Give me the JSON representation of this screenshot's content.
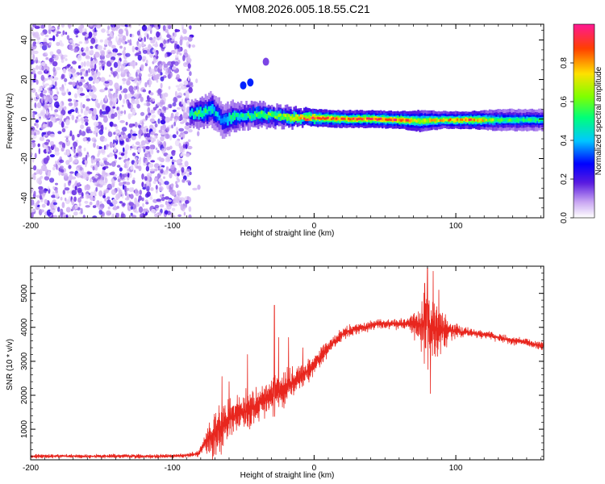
{
  "title": "YM08.2026.005.18.55.C21",
  "colors": {
    "snr_line": "#e8261e",
    "frame": "#000000",
    "background": "#ffffff"
  },
  "chart_data": [
    {
      "type": "heatmap",
      "title": "YM08.2026.005.18.55.C21",
      "xlabel": "Height of straight line (km)",
      "ylabel": "Frequency (Hz)",
      "xlim": [
        -200,
        162
      ],
      "ylim": [
        -50,
        48
      ],
      "xticks": [
        -200,
        -100,
        0,
        100
      ],
      "xtick_labels": [
        "-200",
        "-100",
        "0",
        "100"
      ],
      "yticks": [
        -40,
        -20,
        0,
        20,
        40
      ],
      "ytick_labels": [
        "-40",
        "-20",
        "0",
        "20",
        "40"
      ],
      "colorbar": {
        "label": "Normalized spectral amplitude",
        "range": [
          0,
          1
        ],
        "ticks": [
          0,
          0.2,
          0.4,
          0.6,
          0.8
        ],
        "tick_labels": [
          "0.0",
          "0.2",
          "0.4",
          "0.6",
          "0.8"
        ],
        "stops": [
          {
            "v": 0.0,
            "color": "#ffffff"
          },
          {
            "v": 0.08,
            "color": "#c9a6f2"
          },
          {
            "v": 0.18,
            "color": "#5a1be0"
          },
          {
            "v": 0.28,
            "color": "#0000ff"
          },
          {
            "v": 0.4,
            "color": "#00c8ff"
          },
          {
            "v": 0.52,
            "color": "#00ff7a"
          },
          {
            "v": 0.63,
            "color": "#80ff00"
          },
          {
            "v": 0.75,
            "color": "#ffe000"
          },
          {
            "v": 0.88,
            "color": "#ff4000"
          },
          {
            "v": 1.0,
            "color": "#ff1a8c"
          }
        ]
      },
      "noise_region_x": [
        -200,
        -87
      ],
      "signal_track": [
        {
          "x": -88,
          "freq": 2.5,
          "width": 3,
          "amp": 0.5
        },
        {
          "x": -80,
          "freq": 3,
          "width": 3.5,
          "amp": 0.55
        },
        {
          "x": -72,
          "freq": 5,
          "width": 4,
          "amp": 0.45
        },
        {
          "x": -65,
          "freq": -1,
          "width": 4,
          "amp": 0.4
        },
        {
          "x": -58,
          "freq": 1,
          "width": 3.5,
          "amp": 0.5
        },
        {
          "x": -50,
          "freq": 1.5,
          "width": 3,
          "amp": 0.5
        },
        {
          "x": -40,
          "freq": 2.5,
          "width": 3,
          "amp": 0.55
        },
        {
          "x": -30,
          "freq": 1.5,
          "width": 2.5,
          "amp": 0.6
        },
        {
          "x": -20,
          "freq": 1,
          "width": 2.5,
          "amp": 0.65
        },
        {
          "x": -10,
          "freq": 0.5,
          "width": 2,
          "amp": 0.85
        },
        {
          "x": 0,
          "freq": 0.5,
          "width": 2,
          "amp": 0.9
        },
        {
          "x": 20,
          "freq": 0,
          "width": 2,
          "amp": 0.85
        },
        {
          "x": 40,
          "freq": 0,
          "width": 2,
          "amp": 0.85
        },
        {
          "x": 60,
          "freq": -0.5,
          "width": 2,
          "amp": 0.9
        },
        {
          "x": 75,
          "freq": -1,
          "width": 2.5,
          "amp": 0.7
        },
        {
          "x": 90,
          "freq": -0.5,
          "width": 2,
          "amp": 0.75
        },
        {
          "x": 110,
          "freq": -0.5,
          "width": 2,
          "amp": 0.85
        },
        {
          "x": 130,
          "freq": -0.5,
          "width": 2.5,
          "amp": 0.55
        },
        {
          "x": 162,
          "freq": -0.5,
          "width": 2.5,
          "amp": 0.5
        }
      ],
      "side_blobs": [
        {
          "x": -50,
          "freq": 17,
          "amp": 0.3
        },
        {
          "x": -45,
          "freq": 18.5,
          "amp": 0.3
        },
        {
          "x": -34,
          "freq": 29,
          "amp": 0.15
        }
      ]
    },
    {
      "type": "line",
      "xlabel": "Height of straight line (km)",
      "ylabel": "SNR (10 * v/v)",
      "xlim": [
        -200,
        162
      ],
      "ylim": [
        100,
        5800
      ],
      "xticks": [
        -200,
        -100,
        0,
        100
      ],
      "xtick_labels": [
        "-200",
        "-100",
        "0",
        "100"
      ],
      "yticks": [
        1000,
        2000,
        3000,
        4000,
        5000
      ],
      "ytick_labels": [
        "1000",
        "2000",
        "3000",
        "4000",
        "5000"
      ],
      "series": [
        {
          "name": "SNR",
          "baseline_x": [
            -200,
            -180,
            -160,
            -140,
            -120,
            -100,
            -90,
            -82,
            -78,
            -75,
            -70,
            -65,
            -60,
            -55,
            -50,
            -45,
            -40,
            -35,
            -30,
            -25,
            -20,
            -15,
            -10,
            -5,
            0,
            5,
            10,
            15,
            20,
            25,
            30,
            35,
            40,
            45,
            50,
            55,
            60,
            65,
            70,
            75,
            80,
            85,
            90,
            95,
            100,
            105,
            110,
            115,
            120,
            125,
            130,
            135,
            140,
            145,
            150,
            155,
            162
          ],
          "baseline_y": [
            200,
            210,
            200,
            210,
            200,
            210,
            230,
            280,
            500,
            700,
            900,
            1100,
            1300,
            1400,
            1500,
            1600,
            1700,
            1900,
            2000,
            2100,
            2200,
            2350,
            2500,
            2700,
            2900,
            3150,
            3400,
            3600,
            3800,
            3900,
            3950,
            4000,
            4050,
            4100,
            4100,
            4100,
            4100,
            4100,
            4100,
            4100,
            4050,
            4000,
            3950,
            3900,
            3900,
            3850,
            3850,
            3800,
            3800,
            3750,
            3700,
            3650,
            3600,
            3600,
            3550,
            3500,
            3450
          ],
          "noise_amplitude": [
            70,
            70,
            70,
            70,
            70,
            70,
            80,
            100,
            250,
            500,
            900,
            1000,
            700,
            600,
            600,
            900,
            700,
            900,
            800,
            700,
            650,
            600,
            550,
            450,
            350,
            350,
            300,
            250,
            200,
            200,
            200,
            200,
            180,
            180,
            180,
            180,
            180,
            200,
            400,
            900,
            1500,
            1400,
            800,
            400,
            250,
            200,
            150,
            150,
            150,
            150,
            150,
            150,
            150,
            150,
            150,
            150,
            150
          ],
          "peaks": [
            {
              "x": -65,
              "y": 2550
            },
            {
              "x": -60,
              "y": 2400
            },
            {
              "x": -47,
              "y": 3200
            },
            {
              "x": -28,
              "y": 4650
            },
            {
              "x": -25,
              "y": 3700
            },
            {
              "x": -18,
              "y": 3700
            },
            {
              "x": -8,
              "y": 3400
            },
            {
              "x": 78,
              "y": 5300
            },
            {
              "x": 80,
              "y": 5750
            },
            {
              "x": 84,
              "y": 5650
            },
            {
              "x": 82,
              "y": 2050
            },
            {
              "x": 88,
              "y": 5100
            }
          ]
        }
      ]
    }
  ]
}
